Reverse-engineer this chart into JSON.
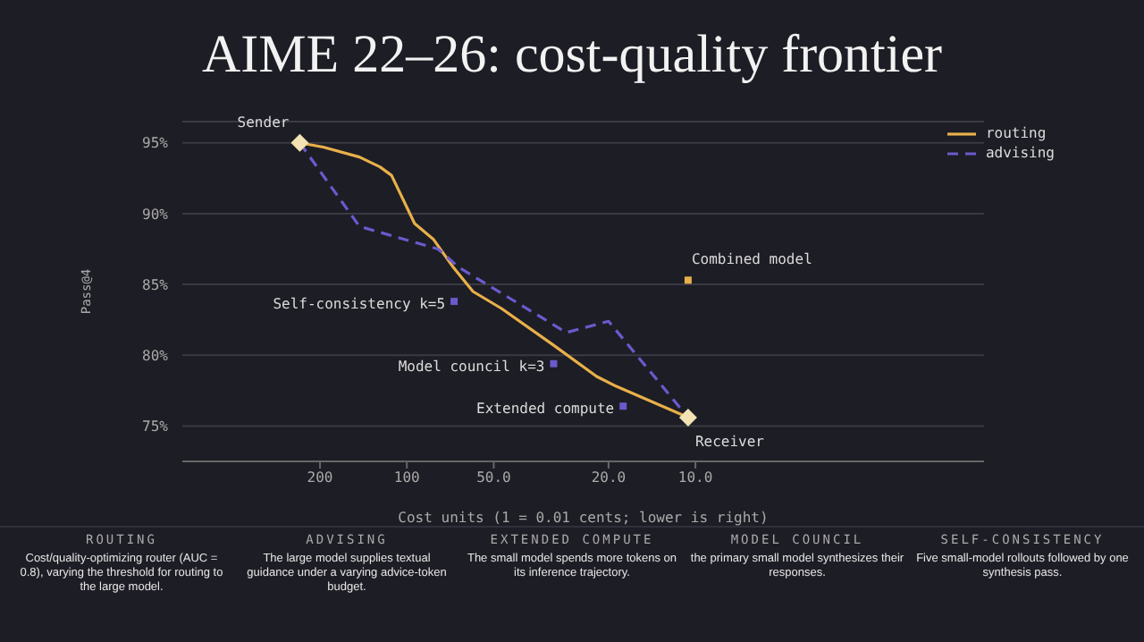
{
  "chart_data": {
    "type": "line",
    "title": "AIME 22–26: cost-quality frontier",
    "xlabel": "Cost units (1 = 0.01 cents; lower is right)",
    "ylabel": "Pass@4",
    "xlim": [
      600,
      1
    ],
    "xticks": [
      200,
      100,
      {
        "value": 50,
        "label": "50.0"
      },
      {
        "value": 20,
        "label": "20.0"
      },
      {
        "value": 10,
        "label": "10.0"
      }
    ],
    "ylim": [
      72.5,
      96.5
    ],
    "yticks": [
      {
        "value": 75,
        "label": "75%"
      },
      {
        "value": 80,
        "label": "80%"
      },
      {
        "value": 85,
        "label": "85%"
      },
      {
        "value": 90,
        "label": "90%"
      },
      {
        "value": 95,
        "label": "95%"
      }
    ],
    "log": "x",
    "grid": "y",
    "legend": "top right",
    "series": [
      {
        "name": "routing",
        "color": "#e8b04a",
        "line_style": "solid",
        "marker": "none",
        "x": [
          235,
          195,
          146,
          124,
          113,
          94,
          81,
          69,
          59,
          47,
          31,
          22,
          18.8,
          10.6
        ],
        "values": [
          95,
          94.7,
          94.0,
          93.3,
          92.7,
          89.3,
          88.2,
          86.2,
          84.5,
          83.3,
          80.7,
          78.5,
          77.8,
          75.6
        ]
      },
      {
        "name": "advising",
        "color": "#6a5acd",
        "line_style": "dashed",
        "marker": "none",
        "x": [
          235,
          146,
          78,
          66,
          43,
          28,
          20,
          10.6
        ],
        "values": [
          95,
          89.1,
          87.5,
          86.2,
          83.9,
          81.6,
          82.4,
          75.6
        ]
      },
      {
        "type": "scatter",
        "marker": "diamond",
        "color": "#f3e2b3",
        "x": [
          235,
          10.6
        ],
        "values": [
          95,
          75.6
        ]
      },
      {
        "type": "scatter",
        "marker": "square",
        "colors": [
          "#e8b04a",
          "#6a5acd",
          "#6a5acd",
          "#6a5acd"
        ],
        "x": [
          10.6,
          68.6,
          31,
          17.8
        ],
        "values": [
          85.3,
          83.8,
          79.4,
          76.4
        ]
      }
    ],
    "annotations": [
      {
        "text": "Sender",
        "x": 235,
        "y": 95
      },
      {
        "text": "Receiver",
        "x": 10.6,
        "y": 75.6
      },
      {
        "text": "Combined model",
        "x": 10.6,
        "y": 85.3
      },
      {
        "text": "Self-consistency k=5",
        "x": 68.6,
        "y": 83.8
      },
      {
        "text": "Model council k=3",
        "x": 31,
        "y": 79.4
      },
      {
        "text": "Extended compute",
        "x": 17.8,
        "y": 76.4
      },
      "ROUTING",
      "Cost/quality-optimizing router (AUC = 0.8), varying the threshold for routing to the large model.",
      "ADVISING",
      "The large model supplies textual guidance under a varying advice-token budget.",
      "EXTENDED COMPUTE",
      "The small model spends more tokens on its inference trajectory.",
      "MODEL COUNCIL",
      "the primary small model synthesizes their responses.",
      "SELF-CONSISTENCY",
      "Five small-model rollouts followed by one synthesis pass."
    ]
  }
}
